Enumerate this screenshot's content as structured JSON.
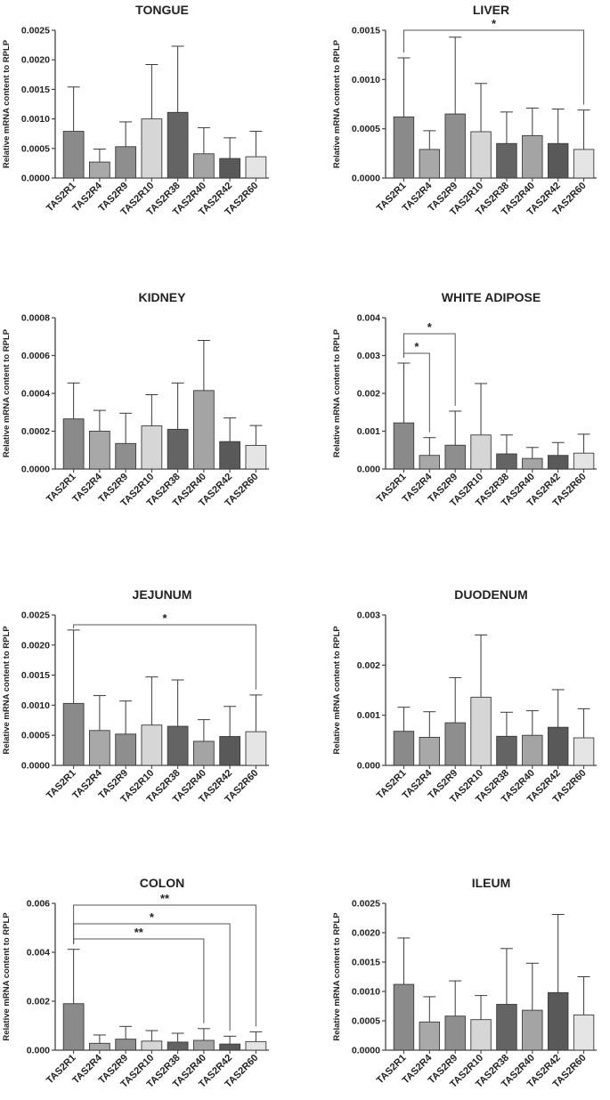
{
  "colors": {
    "series": [
      "#8a8a8a",
      "#a8a8a8",
      "#8e8e8e",
      "#d6d6d6",
      "#646464",
      "#a4a4a4",
      "#595959",
      "#e4e4e4"
    ],
    "axis": "#444444"
  },
  "chart_data": [
    {
      "type": "bar",
      "title": "TONGUE",
      "ylabel": "Relative mRNA content to RPLP",
      "categories": [
        "TAS2R1",
        "TAS2R4",
        "TAS2R9",
        "TAS2R10",
        "TAS2R38",
        "TAS2R40",
        "TAS2R42",
        "TAS2R60"
      ],
      "values": [
        0.00079,
        0.00027,
        0.00053,
        0.001,
        0.00111,
        0.00041,
        0.00033,
        0.00036
      ],
      "errors": [
        0.00075,
        0.00022,
        0.00042,
        0.00092,
        0.00112,
        0.00044,
        0.00035,
        0.00043
      ],
      "ylim": [
        0,
        0.0025
      ],
      "yticks": [
        "0.0000",
        "0.0005",
        "0.0010",
        "0.0015",
        "0.0020",
        "0.0025"
      ],
      "significance": []
    },
    {
      "type": "bar",
      "title": "LIVER",
      "ylabel": "Relative mRNA content to RPLP",
      "categories": [
        "TAS2R1",
        "TAS2R4",
        "TAS2R9",
        "TAS2R10",
        "TAS2R38",
        "TAS2R40",
        "TAS2R42",
        "TAS2R60"
      ],
      "values": [
        0.00062,
        0.00029,
        0.00065,
        0.00047,
        0.00035,
        0.00043,
        0.00035,
        0.00029
      ],
      "errors": [
        0.0006,
        0.00019,
        0.00078,
        0.00049,
        0.00032,
        0.00028,
        0.00035,
        0.0004
      ],
      "ylim": [
        0,
        0.0015
      ],
      "yticks": [
        "0.0000",
        "0.0005",
        "0.0010",
        "0.0015"
      ],
      "significance": [
        {
          "from": 0,
          "to": 7,
          "label": "*"
        }
      ]
    },
    {
      "type": "bar",
      "title": "KIDNEY",
      "ylabel": "Relative mRNA content to RPLP",
      "categories": [
        "TAS2R1",
        "TAS2R4",
        "TAS2R9",
        "TAS2R10",
        "TAS2R38",
        "TAS2R40",
        "TAS2R42",
        "TAS2R60"
      ],
      "values": [
        0.000265,
        0.0002,
        0.000135,
        0.000228,
        0.00021,
        0.000415,
        0.000145,
        0.000125
      ],
      "errors": [
        0.00019,
        0.00011,
        0.00016,
        0.000165,
        0.000245,
        0.000265,
        0.000125,
        0.000105
      ],
      "ylim": [
        0,
        0.0008
      ],
      "yticks": [
        "0.0000",
        "0.0002",
        "0.0004",
        "0.0006",
        "0.0008"
      ],
      "significance": []
    },
    {
      "type": "bar",
      "title": "WHITE ADIPOSE",
      "ylabel": "Relative mRNA content to RPLP",
      "categories": [
        "TAS2R1",
        "TAS2R4",
        "TAS2R9",
        "TAS2R10",
        "TAS2R38",
        "TAS2R40",
        "TAS2R42",
        "TAS2R60"
      ],
      "values": [
        0.00122,
        0.00036,
        0.00063,
        0.0009,
        0.0004,
        0.00028,
        0.00036,
        0.00042
      ],
      "errors": [
        0.00158,
        0.00047,
        0.0009,
        0.00136,
        0.0005,
        0.00029,
        0.00034,
        0.0005
      ],
      "ylim": [
        0,
        0.004
      ],
      "yticks": [
        "0.000",
        "0.001",
        "0.002",
        "0.003",
        "0.004"
      ],
      "significance": [
        {
          "from": 0,
          "to": 1,
          "label": "*"
        },
        {
          "from": 0,
          "to": 2,
          "label": "*"
        }
      ]
    },
    {
      "type": "bar",
      "title": "JEJUNUM",
      "ylabel": "Relative mRNA content to RPLP",
      "categories": [
        "TAS2R1",
        "TAS2R4",
        "TAS2R9",
        "TAS2R10",
        "TAS2R38",
        "TAS2R40",
        "TAS2R42",
        "TAS2R60"
      ],
      "values": [
        0.00103,
        0.00058,
        0.00052,
        0.00067,
        0.00065,
        0.0004,
        0.00048,
        0.00056
      ],
      "errors": [
        0.00122,
        0.00058,
        0.00055,
        0.0008,
        0.00077,
        0.00036,
        0.0005,
        0.00061
      ],
      "ylim": [
        0,
        0.0025
      ],
      "yticks": [
        "0.0000",
        "0.0005",
        "0.0010",
        "0.0015",
        "0.0020",
        "0.0025"
      ],
      "significance": [
        {
          "from": 0,
          "to": 7,
          "label": "*"
        }
      ]
    },
    {
      "type": "bar",
      "title": "DUODENUM",
      "ylabel": "Relative mRNA content to RPLP",
      "categories": [
        "TAS2R1",
        "TAS2R4",
        "TAS2R9",
        "TAS2R10",
        "TAS2R38",
        "TAS2R40",
        "TAS2R42",
        "TAS2R60"
      ],
      "values": [
        0.00068,
        0.00056,
        0.00085,
        0.00136,
        0.00058,
        0.0006,
        0.00076,
        0.00055
      ],
      "errors": [
        0.00048,
        0.00051,
        0.0009,
        0.00124,
        0.00048,
        0.00049,
        0.00075,
        0.00058
      ],
      "ylim": [
        0,
        0.003
      ],
      "yticks": [
        "0.000",
        "0.001",
        "0.002",
        "0.003"
      ],
      "significance": []
    },
    {
      "type": "bar",
      "title": "COLON",
      "ylabel": "Relative mRNA content to RPLP",
      "categories": [
        "TAS2R1",
        "TAS2R4",
        "TAS2R9",
        "TAS2R10",
        "TAS2R38",
        "TAS2R40",
        "TAS2R42",
        "TAS2R60"
      ],
      "values": [
        0.0019,
        0.00028,
        0.00045,
        0.00037,
        0.00033,
        0.0004,
        0.00025,
        0.00035
      ],
      "errors": [
        0.00222,
        0.00034,
        0.00052,
        0.00043,
        0.00036,
        0.00048,
        0.00032,
        0.0004
      ],
      "ylim": [
        0,
        0.006
      ],
      "yticks": [
        "0.000",
        "0.002",
        "0.004",
        "0.006"
      ],
      "significance": [
        {
          "from": 0,
          "to": 5,
          "label": "**"
        },
        {
          "from": 0,
          "to": 6,
          "label": "*"
        },
        {
          "from": 0,
          "to": 7,
          "label": "**"
        }
      ]
    },
    {
      "type": "bar",
      "title": "ILEUM",
      "ylabel": "Relative mRNA content to RPLP",
      "categories": [
        "TAS2R1",
        "TAS2R4",
        "TAS2R9",
        "TAS2R10",
        "TAS2R38",
        "TAS2R40",
        "TAS2R42",
        "TAS2R60"
      ],
      "values": [
        0.00112,
        0.00048,
        0.00058,
        0.00052,
        0.00078,
        0.00068,
        0.00098,
        0.0006
      ],
      "errors": [
        0.00079,
        0.00043,
        0.0006,
        0.00041,
        0.00095,
        0.0008,
        0.00133,
        0.00065
      ],
      "ylim": [
        0,
        0.0025
      ],
      "yticks": [
        "0.0000",
        "0.0005",
        "0.0010",
        "0.0015",
        "0.0020",
        "0.0025"
      ],
      "significance": []
    }
  ]
}
